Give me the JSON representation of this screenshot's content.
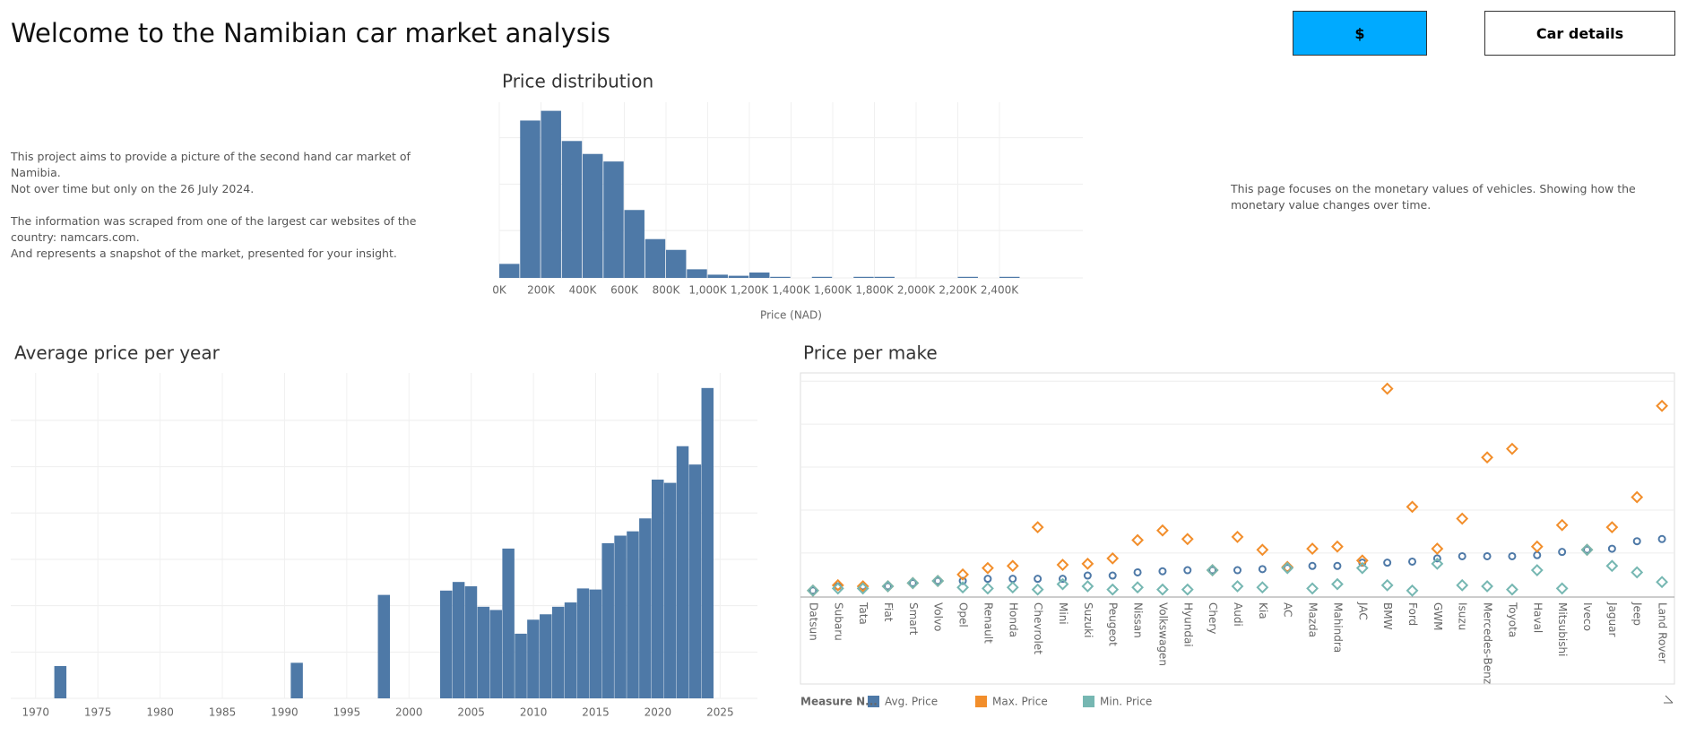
{
  "header": {
    "title": "Welcome to the Namibian car market analysis",
    "buttons": [
      "$",
      "Car details"
    ]
  },
  "intro": [
    [
      "This project aims to provide a picture of the second hand car market of Namibia.",
      "Not over time but only on the  26 July 2024."
    ],
    [
      "The information was scraped from one of the largest car websites of the",
      "country: namcars.com.",
      "And represents a snapshot of the market, presented for your insight."
    ]
  ],
  "note": "This page focuses on the monetary values of vehicles. Showing how the monetary value changes over time.",
  "chart_data": [
    {
      "type": "histogram",
      "title": "Price distribution",
      "xlabel": "Price (NAD)",
      "color": "#4e79a7",
      "grid": true,
      "bins": [
        0,
        100000,
        200000,
        300000,
        400000,
        500000,
        600000,
        700000,
        800000,
        900000,
        1000000,
        1100000,
        1200000,
        1300000,
        1400000,
        1500000,
        1600000,
        1700000,
        1800000,
        1900000,
        2000000,
        2100000,
        2200000,
        2300000,
        2400000,
        2500000,
        2600000,
        2700000,
        2800000
      ],
      "values": [
        13,
        146,
        155,
        127,
        115,
        108,
        63,
        36,
        26,
        8,
        3,
        2,
        5,
        1,
        0,
        1,
        0,
        1,
        1,
        0,
        0,
        0,
        1,
        0,
        1,
        0,
        0,
        0
      ],
      "xlim": [
        0,
        2800000
      ],
      "xticks": [
        {
          "value": 0,
          "label": "0K"
        },
        {
          "value": 200000,
          "label": "200K"
        },
        {
          "value": 400000,
          "label": "400K"
        },
        {
          "value": 600000,
          "label": "600K"
        },
        {
          "value": 800000,
          "label": "800K"
        },
        {
          "value": 1000000,
          "label": "1,000K"
        },
        {
          "value": 1200000,
          "label": "1,200K"
        },
        {
          "value": 1400000,
          "label": "1,400K"
        },
        {
          "value": 1600000,
          "label": "1,600K"
        },
        {
          "value": 1800000,
          "label": "1,800K"
        },
        {
          "value": 2000000,
          "label": "2,000K"
        },
        {
          "value": 2200000,
          "label": "2,200K"
        },
        {
          "value": 2400000,
          "label": "2,400K"
        }
      ],
      "ylim": [
        0,
        163
      ],
      "yticks": [
        0,
        44,
        87,
        130
      ]
    },
    {
      "type": "bar",
      "title": "Average price per year",
      "color": "#4e79a7",
      "grid": true,
      "x": [
        1972,
        1991,
        1998,
        2003,
        2004,
        2005,
        2006,
        2007,
        2008,
        2009,
        2010,
        2011,
        2012,
        2013,
        2014,
        2015,
        2016,
        2017,
        2018,
        2019,
        2020,
        2021,
        2022,
        2023,
        2024
      ],
      "values": [
        30,
        33,
        96,
        100,
        108,
        104,
        85,
        82,
        139,
        60,
        73,
        78,
        85,
        89,
        102,
        101,
        144,
        151,
        155,
        167,
        203,
        200,
        234,
        217,
        288
      ],
      "xlim": [
        1968,
        2028
      ],
      "xticks": [
        1970,
        1975,
        1980,
        1985,
        1990,
        1995,
        2000,
        2005,
        2010,
        2015,
        2020,
        2025
      ],
      "ylim": [
        0,
        302
      ],
      "yticks": [
        0,
        43,
        86,
        129,
        172,
        215,
        258
      ]
    },
    {
      "type": "dot",
      "title": "Price per make",
      "grid": true,
      "legend_title": "Measure N...",
      "categories": [
        "Datsun",
        "Subaru",
        "Tata",
        "Fiat",
        "Smart",
        "Volvo",
        "Opel",
        "Renault",
        "Honda",
        "Chevrolet",
        "Mini",
        "Suzuki",
        "Peugeot",
        "Nissan",
        "Volkswagen",
        "Hyundai",
        "Chery",
        "Audi",
        "Kia",
        "AC",
        "Mazda",
        "Mahindra",
        "JAC",
        "BMW",
        "Ford",
        "GWM",
        "Isuzu",
        "Mercedes-Benz",
        "Toyota",
        "Haval",
        "Mitsubishi",
        "Iveco",
        "Jaguar",
        "Jeep",
        "Land Rover"
      ],
      "series": [
        {
          "name": "Avg. Price",
          "color": "#4e79a7",
          "marker": "circle",
          "values": [
            6,
            10,
            10,
            10,
            13,
            15,
            15,
            17,
            17,
            17,
            17,
            20,
            20,
            23,
            24,
            25,
            25,
            25,
            26,
            27,
            29,
            29,
            32,
            32,
            33,
            36,
            38,
            38,
            38,
            39,
            42,
            44,
            45,
            52,
            54
          ]
        },
        {
          "name": "Max. Price",
          "color": "#f28e2b",
          "marker": "diamond",
          "values": [
            6,
            11,
            10,
            10,
            13,
            15,
            21,
            27,
            29,
            65,
            30,
            31,
            36,
            53,
            62,
            54,
            25,
            56,
            44,
            28,
            45,
            47,
            34,
            194,
            84,
            45,
            73,
            130,
            138,
            47,
            67,
            44,
            65,
            93,
            178
          ]
        },
        {
          "name": "Min. Price",
          "color": "#76b7b2",
          "marker": "diamond",
          "values": [
            6,
            8,
            8,
            10,
            13,
            15,
            9,
            8,
            9,
            7,
            12,
            10,
            7,
            9,
            7,
            7,
            25,
            10,
            9,
            27,
            8,
            12,
            27,
            11,
            6,
            31,
            11,
            10,
            7,
            25,
            8,
            44,
            29,
            23,
            14
          ]
        }
      ],
      "ylim": [
        0,
        207
      ],
      "yticks": [
        0,
        41,
        81,
        121,
        161,
        201
      ]
    }
  ]
}
